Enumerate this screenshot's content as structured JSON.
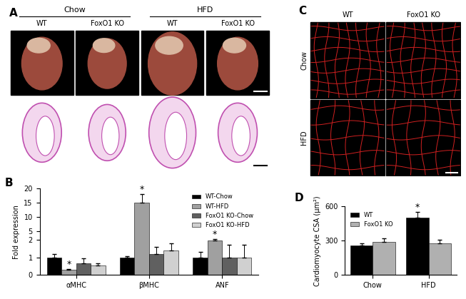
{
  "panel_a": {
    "label": "A",
    "groups": [
      {
        "name": "Chow",
        "columns": [
          "WT",
          "FoxO1 KO"
        ]
      },
      {
        "name": "HFD",
        "columns": [
          "WT",
          "FoxO1 KO"
        ]
      }
    ]
  },
  "panel_c": {
    "label": "C",
    "columns": [
      "WT",
      "FoxO1 KO"
    ],
    "rows": [
      "Chow",
      "HFD"
    ]
  },
  "chart_data": [
    {
      "type": "bar",
      "title": "B",
      "y_label": "Fold expression",
      "categories": [
        "αMHC",
        "βMHC",
        "ANF"
      ],
      "series": [
        {
          "name": "WT-Chow",
          "color": "#000000",
          "values": [
            1.0,
            1.0,
            1.0
          ],
          "errors": [
            0.2,
            0.05,
            0.3
          ]
        },
        {
          "name": "WT-HFD",
          "color": "#a0a0a0",
          "values": [
            0.3,
            15,
            1.95
          ],
          "errors": [
            0.05,
            3,
            0.15
          ]
        },
        {
          "name": "FoxO1 KO-Chow",
          "color": "#606060",
          "values": [
            0.65,
            1.2,
            1.0
          ],
          "errors": [
            0.3,
            0.4,
            0.7
          ]
        },
        {
          "name": "FoxO1 KO-HFD",
          "color": "#d0d0d0",
          "values": [
            0.55,
            1.4,
            1.0
          ],
          "errors": [
            0.1,
            0.4,
            0.7
          ]
        }
      ],
      "ylim": [
        0,
        20
      ],
      "yticks": [
        0,
        1,
        2,
        5,
        10,
        15,
        20
      ],
      "legend": "upper right",
      "annotations": [
        {
          "text": "*",
          "series": "WT-HFD",
          "category": "αMHC"
        },
        {
          "text": "*",
          "series": "WT-HFD",
          "category": "βMHC"
        },
        {
          "text": "*",
          "series": "WT-HFD",
          "category": "ANF"
        }
      ]
    },
    {
      "type": "bar",
      "title": "D",
      "y_label": "Cardiomyocyte CSA (μm²)",
      "categories": [
        "Chow",
        "HFD"
      ],
      "series": [
        {
          "name": "WT",
          "color": "#000000",
          "values": [
            260,
            500
          ],
          "errors": [
            20,
            50
          ]
        },
        {
          "name": "FoxO1 KO",
          "color": "#b0b0b0",
          "values": [
            290,
            280
          ],
          "errors": [
            30,
            30
          ]
        }
      ],
      "ylim": [
        0,
        600
      ],
      "yticks": [
        0,
        300,
        600
      ],
      "legend": "upper left",
      "annotations": [
        {
          "text": "*",
          "series": "WT",
          "category": "HFD"
        }
      ]
    }
  ]
}
